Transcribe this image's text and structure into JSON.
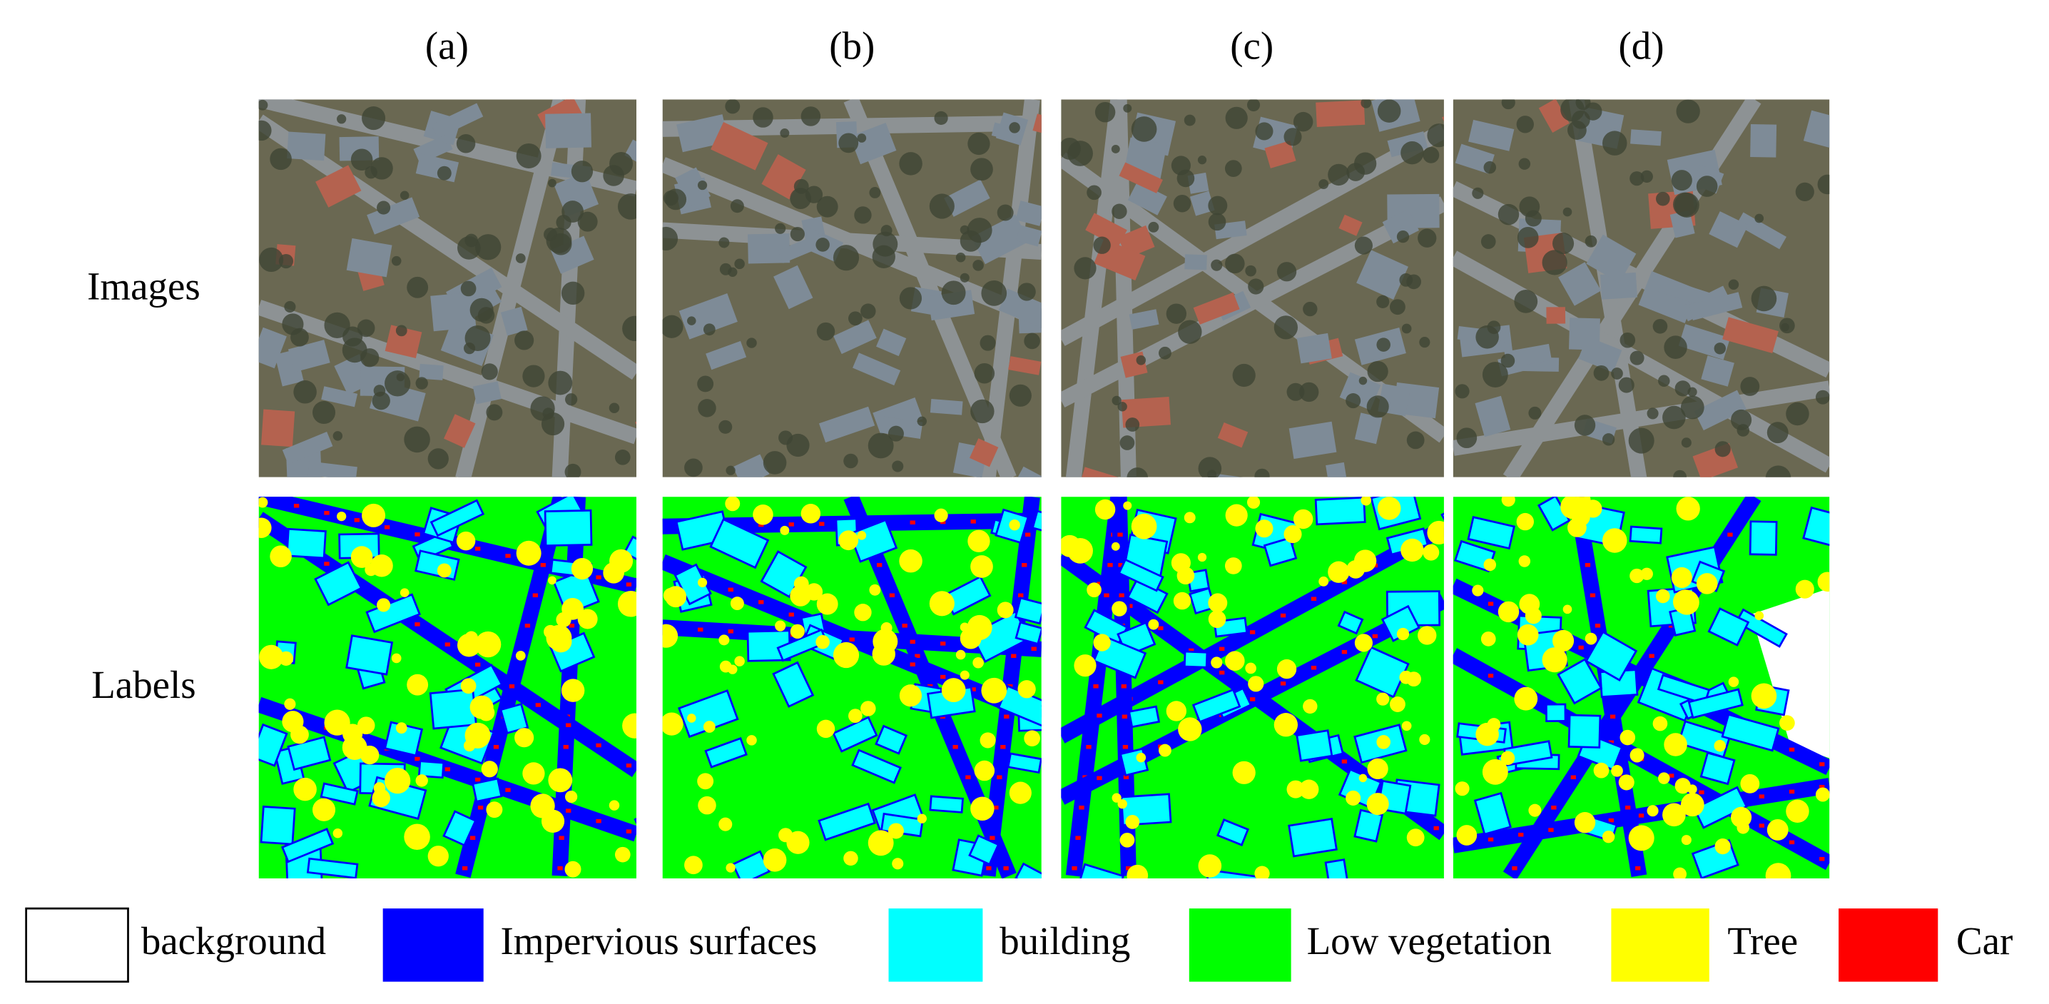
{
  "columns": [
    "(a)",
    "(b)",
    "(c)",
    "(d)"
  ],
  "rows": [
    "Images",
    "Labels"
  ],
  "legend": [
    {
      "label": "background",
      "color": "#ffffff"
    },
    {
      "label": "Impervious surfaces",
      "color": "#0000ff"
    },
    {
      "label": "building",
      "color": "#00ffff"
    },
    {
      "label": "Low vegetation",
      "color": "#00ff00"
    },
    {
      "label": "Tree",
      "color": "#ffff00"
    },
    {
      "label": "Car",
      "color": "#ff0000"
    }
  ]
}
